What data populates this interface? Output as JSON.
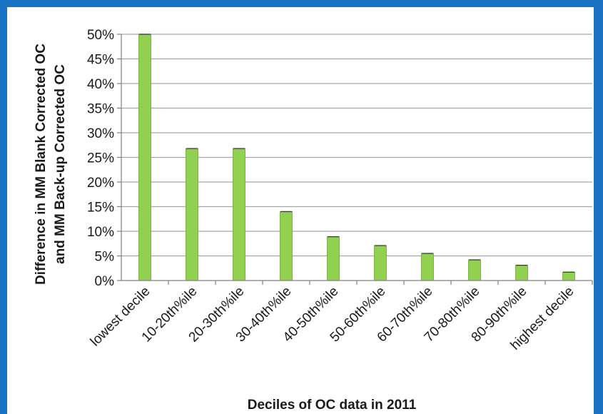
{
  "chart_data": {
    "type": "bar",
    "title": "",
    "xlabel": "Deciles of OC data in 2011",
    "ylabel_line1": "Difference in MM Blank Corrected OC",
    "ylabel_line2": "and MM Back-up Corrected OC",
    "categories": [
      "lowest decile",
      "10-20th%ile",
      "20-30th%ile",
      "30-40th%ile",
      "40-50th%ile",
      "50-60th%ile",
      "60-70th%ile",
      "70-80th%ile",
      "80-90th%ile",
      "highest decile"
    ],
    "values": [
      50.0,
      26.8,
      26.8,
      14.0,
      8.9,
      7.1,
      5.5,
      4.2,
      3.1,
      1.7
    ],
    "ylim": [
      0,
      50
    ],
    "yticks": [
      0,
      5,
      10,
      15,
      20,
      25,
      30,
      35,
      40,
      45,
      50
    ],
    "ytick_labels": [
      "0%",
      "5%",
      "10%",
      "15%",
      "20%",
      "25%",
      "30%",
      "35%",
      "40%",
      "45%",
      "50%"
    ],
    "grid": true,
    "error_bars": true,
    "colors": {
      "bar": "#92d050",
      "bar_stroke": "#6aa832",
      "grid": "#a6a6a6",
      "frame": "#1a72c4"
    }
  }
}
